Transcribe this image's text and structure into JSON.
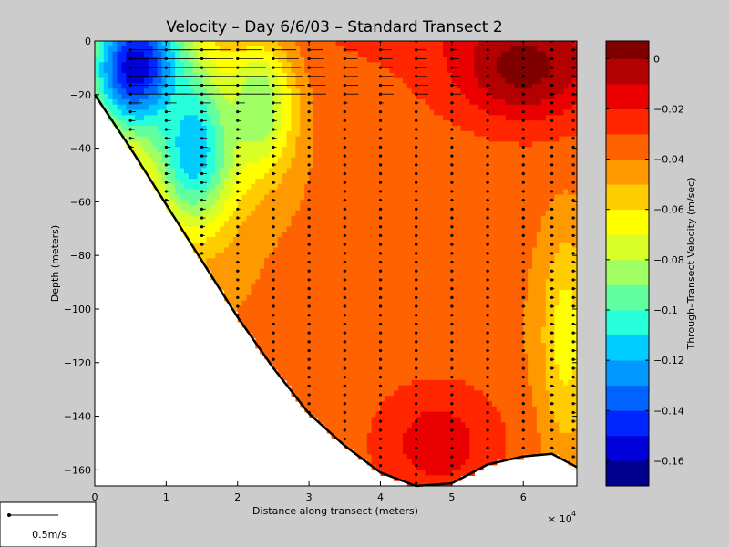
{
  "chart_data": {
    "type": "heatmap",
    "title": "Velocity – Day 6/6/03 – Standard Transect 2",
    "xlabel": "Distance along transect (meters)",
    "ylabel": "Depth (meters)",
    "x_multiplier_label": "× 10",
    "x_multiplier_exponent": "4",
    "xlim": [
      0,
      6.75
    ],
    "ylim": [
      -166,
      0
    ],
    "xticks": [
      0,
      1,
      2,
      3,
      4,
      5,
      6
    ],
    "xtick_labels": [
      "0",
      "1",
      "2",
      "3",
      "4",
      "5",
      "6"
    ],
    "yticks": [
      0,
      -20,
      -40,
      -60,
      -80,
      -100,
      -120,
      -140,
      -160
    ],
    "ytick_labels": [
      "0",
      "−20",
      "−40",
      "−60",
      "−80",
      "−100",
      "−120",
      "−140",
      "−160"
    ],
    "bathymetry": {
      "x": [
        0,
        0.5,
        1,
        1.5,
        2,
        2.5,
        3,
        3.5,
        4,
        4.5,
        5,
        5.5,
        6,
        6.4,
        6.75
      ],
      "depth": [
        -20,
        -40,
        -61,
        -82,
        -103,
        -122,
        -139,
        -151,
        -161,
        -166,
        -165,
        -158,
        -155,
        -154,
        -159
      ]
    },
    "colorbar": {
      "label": "Through–Transect Velocity (m/sec)",
      "vmin": -0.17,
      "vmax": 0.007,
      "levels": [
        -0.17,
        -0.16,
        -0.15,
        -0.14,
        -0.13,
        -0.12,
        -0.11,
        -0.1,
        -0.09,
        -0.08,
        -0.07,
        -0.06,
        -0.05,
        -0.04,
        -0.03,
        -0.02,
        -0.01,
        0,
        0.007
      ],
      "colors": [
        "#00008f",
        "#0000d9",
        "#0026ff",
        "#0062ff",
        "#0099ff",
        "#00ccff",
        "#26ffd9",
        "#62ffa0",
        "#a0ff62",
        "#d9ff26",
        "#ffff00",
        "#ffcc00",
        "#ff9900",
        "#ff6200",
        "#ff2600",
        "#ea0000",
        "#b30000",
        "#800000"
      ],
      "ticks": [
        0,
        -0.02,
        -0.04,
        -0.06,
        -0.08,
        -0.1,
        -0.12,
        -0.14,
        -0.16
      ],
      "tick_labels": [
        "0",
        "−0.02",
        "−0.04",
        "−0.06",
        "−0.08",
        "−0.1",
        "−0.12",
        "−0.14",
        "−0.16"
      ]
    },
    "velocity_field": {
      "description_free": true,
      "grid_x": [
        0.5,
        1,
        1.5,
        2,
        2.5,
        3,
        3.5,
        4,
        4.5,
        5,
        5.5,
        6,
        6.4,
        6.7
      ],
      "depth_step": 20,
      "surface_kernels": [
        {
          "x": 0.6,
          "z": -10,
          "v": -0.16,
          "sx": 0.7,
          "sz": 25
        },
        {
          "x": 1.4,
          "z": -40,
          "v": -0.12,
          "sx": 0.6,
          "sz": 30
        },
        {
          "x": 2.3,
          "z": -25,
          "v": -0.09,
          "sx": 0.5,
          "sz": 25
        },
        {
          "x": 6.0,
          "z": -10,
          "v": 0.005,
          "sx": 0.9,
          "sz": 18
        },
        {
          "x": 4.8,
          "z": -150,
          "v": -0.015,
          "sx": 1.0,
          "sz": 25
        },
        {
          "x": 6.6,
          "z": -110,
          "v": -0.065,
          "sx": 0.35,
          "sz": 40
        }
      ],
      "background": -0.04
    },
    "arrow_legend": {
      "label": "0.5m/s",
      "speed": 0.5
    }
  }
}
